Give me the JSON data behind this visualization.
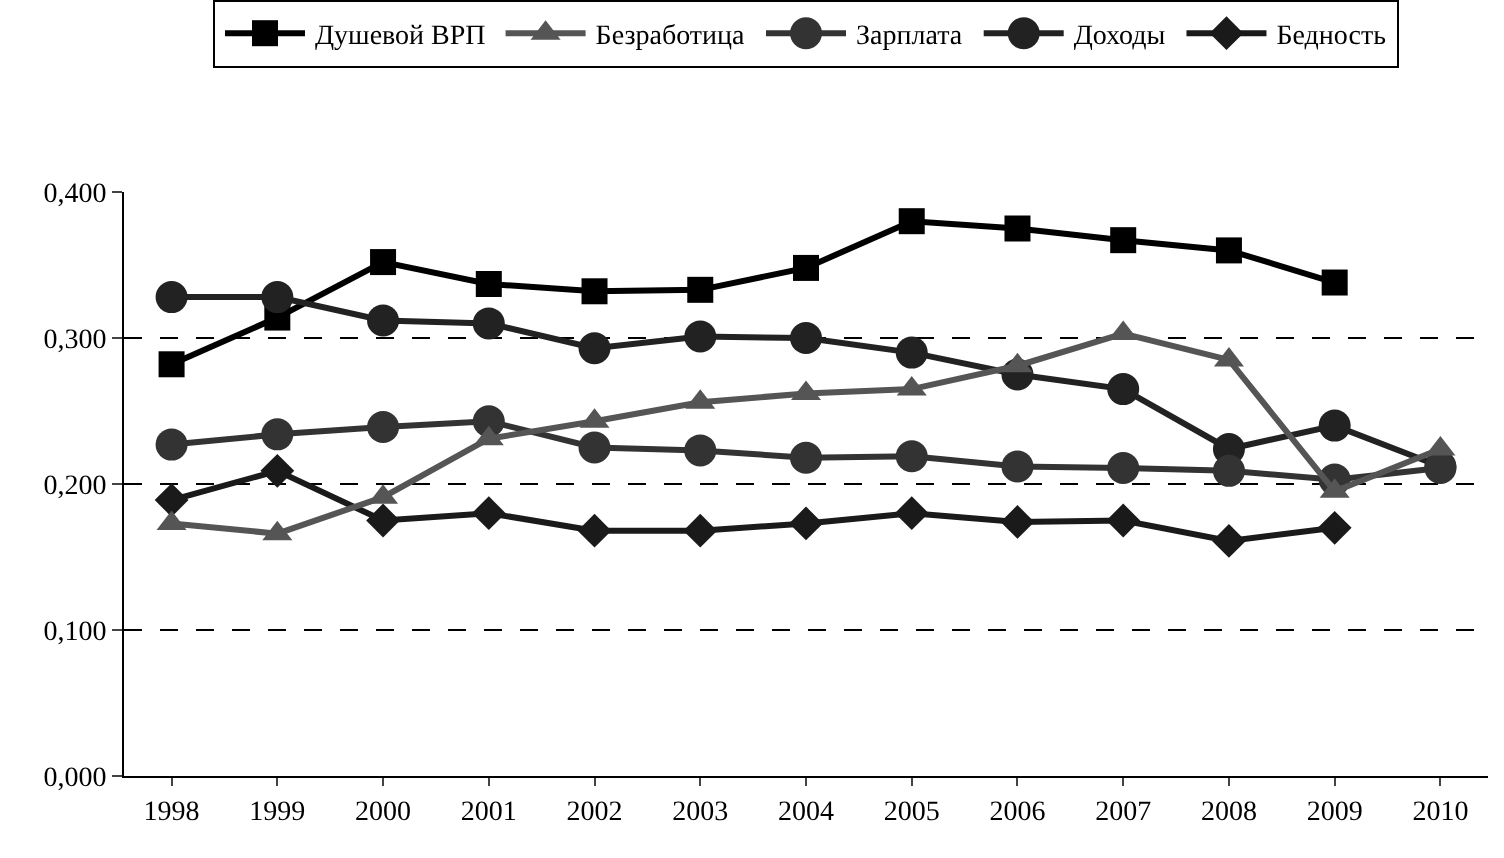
{
  "chart_data": {
    "type": "line",
    "categories": [
      "1998",
      "1999",
      "2000",
      "2001",
      "2002",
      "2003",
      "2004",
      "2005",
      "2006",
      "2007",
      "2008",
      "2009",
      "2010"
    ],
    "series": [
      {
        "name": "Душевой ВРП",
        "color": "#000000",
        "marker": "square",
        "values": [
          0.282,
          0.314,
          0.352,
          0.337,
          0.332,
          0.333,
          0.348,
          0.38,
          0.375,
          0.367,
          0.36,
          0.338,
          null
        ]
      },
      {
        "name": "Безработица",
        "color": "#555555",
        "marker": "triangle",
        "values": [
          0.173,
          0.166,
          0.191,
          0.231,
          0.243,
          0.256,
          0.262,
          0.265,
          0.281,
          0.303,
          0.285,
          0.195,
          0.224
        ]
      },
      {
        "name": "Зарплата",
        "color": "#333333",
        "marker": "circle",
        "values": [
          0.227,
          0.234,
          0.239,
          0.243,
          0.225,
          0.223,
          0.218,
          0.219,
          0.212,
          0.211,
          0.209,
          0.203,
          0.211
        ]
      },
      {
        "name": "Доходы",
        "color": "#222222",
        "marker": "circle",
        "values": [
          0.328,
          0.328,
          0.312,
          0.31,
          0.293,
          0.301,
          0.3,
          0.29,
          0.275,
          0.265,
          0.224,
          0.24,
          0.212
        ]
      },
      {
        "name": "Бедность",
        "color": "#1a1a1a",
        "marker": "diamond",
        "values": [
          0.189,
          0.209,
          0.175,
          0.18,
          0.168,
          0.168,
          0.173,
          0.18,
          0.174,
          0.175,
          0.161,
          0.17,
          null
        ]
      }
    ],
    "ylim": [
      0,
      0.4
    ],
    "yticks": [
      {
        "value": 0,
        "label": "0,000"
      },
      {
        "value": 0.1,
        "label": "0,100"
      },
      {
        "value": 0.2,
        "label": "0,200"
      },
      {
        "value": 0.3,
        "label": "0,300"
      },
      {
        "value": 0.4,
        "label": "0,400"
      }
    ],
    "grid": "y",
    "legend": "top",
    "line_style": "solid"
  }
}
